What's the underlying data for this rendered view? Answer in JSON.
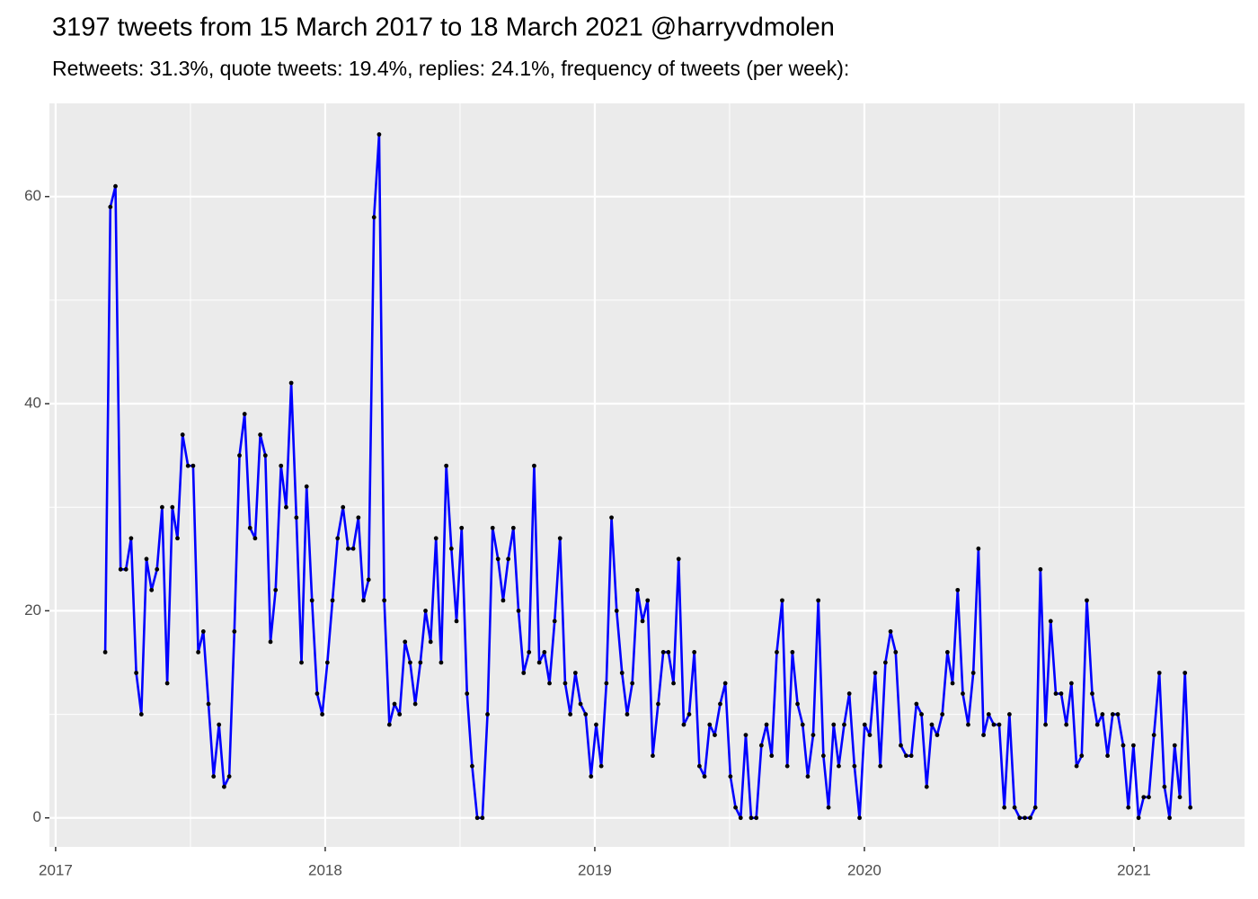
{
  "chart_data": {
    "type": "line",
    "title": "3197 tweets from 15 March 2017 to 18 March 2021 @harryvdmolen",
    "subtitle": "Retweets: 31.3%, quote tweets: 19.4%, replies: 24.1%, frequency of tweets (per week):",
    "x": [
      2017.184,
      2017.203,
      2017.222,
      2017.241,
      2017.261,
      2017.28,
      2017.299,
      2017.318,
      2017.337,
      2017.356,
      2017.376,
      2017.395,
      2017.414,
      2017.433,
      2017.452,
      2017.471,
      2017.491,
      2017.51,
      2017.529,
      2017.548,
      2017.567,
      2017.586,
      2017.606,
      2017.625,
      2017.644,
      2017.663,
      2017.682,
      2017.701,
      2017.721,
      2017.74,
      2017.759,
      2017.778,
      2017.797,
      2017.816,
      2017.836,
      2017.855,
      2017.874,
      2017.893,
      2017.912,
      2017.931,
      2017.951,
      2017.97,
      2017.989,
      2018.008,
      2018.027,
      2018.046,
      2018.066,
      2018.085,
      2018.104,
      2018.123,
      2018.142,
      2018.161,
      2018.181,
      2018.2,
      2018.219,
      2018.238,
      2018.257,
      2018.276,
      2018.296,
      2018.315,
      2018.334,
      2018.353,
      2018.372,
      2018.391,
      2018.411,
      2018.43,
      2018.449,
      2018.468,
      2018.487,
      2018.506,
      2018.526,
      2018.545,
      2018.564,
      2018.583,
      2018.602,
      2018.621,
      2018.641,
      2018.66,
      2018.679,
      2018.698,
      2018.717,
      2018.736,
      2018.756,
      2018.775,
      2018.794,
      2018.813,
      2018.832,
      2018.851,
      2018.871,
      2018.89,
      2018.909,
      2018.928,
      2018.947,
      2018.966,
      2018.986,
      2019.005,
      2019.024,
      2019.043,
      2019.062,
      2019.081,
      2019.101,
      2019.12,
      2019.139,
      2019.158,
      2019.177,
      2019.196,
      2019.215,
      2019.235,
      2019.254,
      2019.273,
      2019.292,
      2019.311,
      2019.33,
      2019.35,
      2019.369,
      2019.388,
      2019.407,
      2019.426,
      2019.445,
      2019.465,
      2019.484,
      2019.503,
      2019.522,
      2019.541,
      2019.56,
      2019.58,
      2019.599,
      2019.618,
      2019.637,
      2019.656,
      2019.675,
      2019.695,
      2019.714,
      2019.733,
      2019.752,
      2019.771,
      2019.79,
      2019.81,
      2019.829,
      2019.848,
      2019.867,
      2019.886,
      2019.905,
      2019.925,
      2019.944,
      2019.963,
      2019.982,
      2020.001,
      2020.02,
      2020.04,
      2020.059,
      2020.078,
      2020.097,
      2020.116,
      2020.135,
      2020.155,
      2020.174,
      2020.193,
      2020.212,
      2020.231,
      2020.25,
      2020.27,
      2020.289,
      2020.308,
      2020.327,
      2020.346,
      2020.365,
      2020.385,
      2020.404,
      2020.423,
      2020.442,
      2020.461,
      2020.48,
      2020.5,
      2020.519,
      2020.538,
      2020.557,
      2020.576,
      2020.595,
      2020.615,
      2020.634,
      2020.653,
      2020.672,
      2020.691,
      2020.71,
      2020.73,
      2020.749,
      2020.768,
      2020.787,
      2020.806,
      2020.825,
      2020.845,
      2020.864,
      2020.883,
      2020.902,
      2020.921,
      2020.94,
      2020.96,
      2020.979,
      2020.998,
      2021.017,
      2021.036,
      2021.055,
      2021.074,
      2021.094,
      2021.113,
      2021.132,
      2021.151,
      2021.17,
      2021.189,
      2021.209
    ],
    "series": [
      {
        "color": "#0000ff",
        "marker_color": "#000000",
        "values": [
          16,
          59,
          61,
          24,
          24,
          27,
          14,
          10,
          25,
          22,
          24,
          30,
          13,
          30,
          27,
          37,
          34,
          34,
          16,
          18,
          11,
          4,
          9,
          3,
          4,
          18,
          35,
          39,
          28,
          27,
          37,
          35,
          17,
          22,
          34,
          30,
          42,
          29,
          15,
          32,
          21,
          12,
          10,
          15,
          21,
          27,
          30,
          26,
          26,
          29,
          21,
          23,
          58,
          66,
          21,
          9,
          11,
          10,
          17,
          15,
          11,
          15,
          20,
          17,
          27,
          15,
          34,
          26,
          19,
          28,
          12,
          5,
          0,
          0,
          10,
          28,
          25,
          21,
          25,
          28,
          20,
          14,
          16,
          34,
          15,
          16,
          13,
          19,
          27,
          13,
          10,
          14,
          11,
          10,
          4,
          9,
          5,
          13,
          29,
          20,
          14,
          10,
          13,
          22,
          19,
          21,
          6,
          11,
          16,
          16,
          13,
          25,
          9,
          10,
          16,
          5,
          4,
          9,
          8,
          11,
          13,
          4,
          1,
          0,
          8,
          0,
          0,
          7,
          9,
          6,
          16,
          21,
          5,
          16,
          11,
          9,
          4,
          8,
          21,
          6,
          1,
          9,
          5,
          9,
          12,
          5,
          0,
          9,
          8,
          14,
          5,
          15,
          18,
          16,
          7,
          6,
          6,
          11,
          10,
          3,
          9,
          8,
          10,
          16,
          13,
          22,
          12,
          9,
          14,
          26,
          8,
          10,
          9,
          9,
          1,
          10,
          1,
          0,
          0,
          0,
          1,
          24,
          9,
          19,
          12,
          12,
          9,
          13,
          5,
          6,
          21,
          12,
          9,
          10,
          6,
          10,
          10,
          7,
          1,
          7,
          0,
          2,
          2,
          8,
          14,
          3,
          0,
          7,
          2,
          14,
          1
        ]
      }
    ],
    "xlim": [
      2016.977,
      2021.41
    ],
    "xticks": [
      2017,
      2018,
      2019,
      2020,
      2021
    ],
    "ylim": [
      -2.8,
      69
    ],
    "yticks": [
      0,
      20,
      40,
      60
    ],
    "grid": true,
    "minor_grid": true,
    "panel_color": "#ebebeb"
  }
}
